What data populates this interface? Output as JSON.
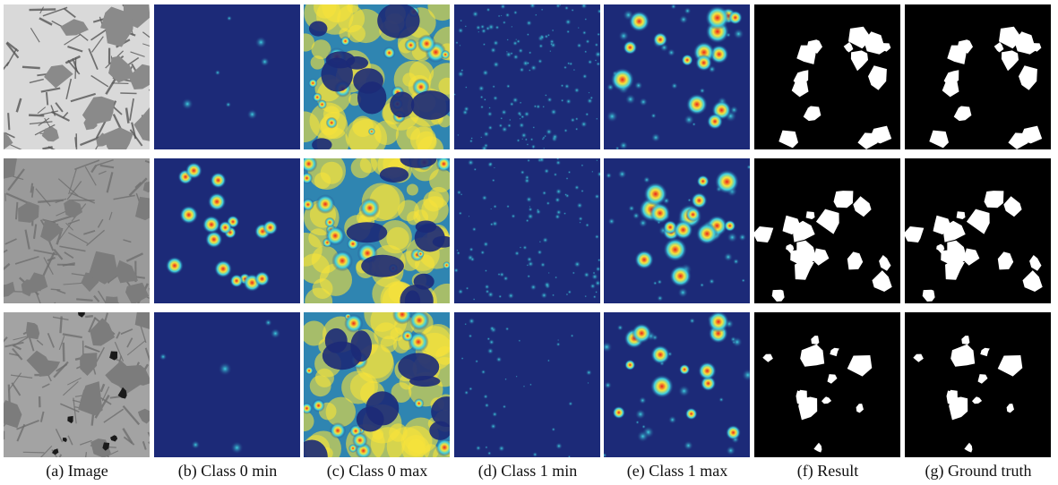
{
  "figure": {
    "captions": [
      "(a) Image",
      "(b) Class 0 min",
      "(c) Class 0 max",
      "(d) Class 1 min",
      "(e) Class 1 max",
      "(f) Result",
      "(g) Ground truth"
    ],
    "rows": 3,
    "column_types": [
      "micrograph",
      "heatmap-sparse",
      "heatmap-dense",
      "heatmap-speckle",
      "heatmap-blobs",
      "binary-mask",
      "binary-mask"
    ],
    "colors": {
      "heatmap_background": "#1c2a78",
      "heatmap_mid": "#3fd0e0",
      "heatmap_warm": "#f6e23a",
      "heatmap_hot": "#e8231c",
      "mask_background": "#000000",
      "mask_foreground": "#ffffff"
    }
  }
}
